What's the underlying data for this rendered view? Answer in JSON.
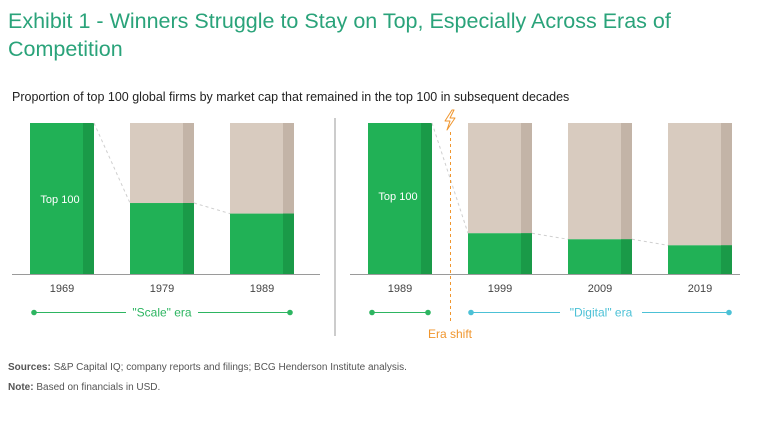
{
  "title": "Exhibit 1 - Winners Struggle to Stay on Top, Especially Across Eras of Competition",
  "subtitle": "Proportion of top 100 global firms by market cap that remained in the top 100 in subsequent decades",
  "chart_data": {
    "type": "bar",
    "stacked": true,
    "ylim": [
      0,
      100
    ],
    "panels": [
      {
        "era": "\"Scale\" era",
        "categories": [
          "1969",
          "1979",
          "1989"
        ],
        "remained": [
          100,
          47,
          40
        ],
        "inner_label": "Top 100"
      },
      {
        "era": "\"Digital\" era",
        "categories": [
          "1989",
          "1999",
          "2009",
          "2019"
        ],
        "remained": [
          100,
          27,
          23,
          19
        ],
        "inner_label": "Top 100"
      }
    ],
    "annotation": "Era shift",
    "colors": {
      "remained": "#21b156",
      "remained_shade": "#1a9a48",
      "dropped": "#d8cbbf",
      "dropped_shade": "#c3b4a7",
      "scale_era": "#2db561",
      "digital_era": "#4cc1d6",
      "shift": "#f0962e"
    }
  },
  "footnotes": {
    "sources_label": "Sources:",
    "sources_text": " S&P Capital IQ; company reports and filings; BCG Henderson Institute analysis.",
    "note_label": "Note:",
    "note_text": " Based on financials in USD."
  }
}
